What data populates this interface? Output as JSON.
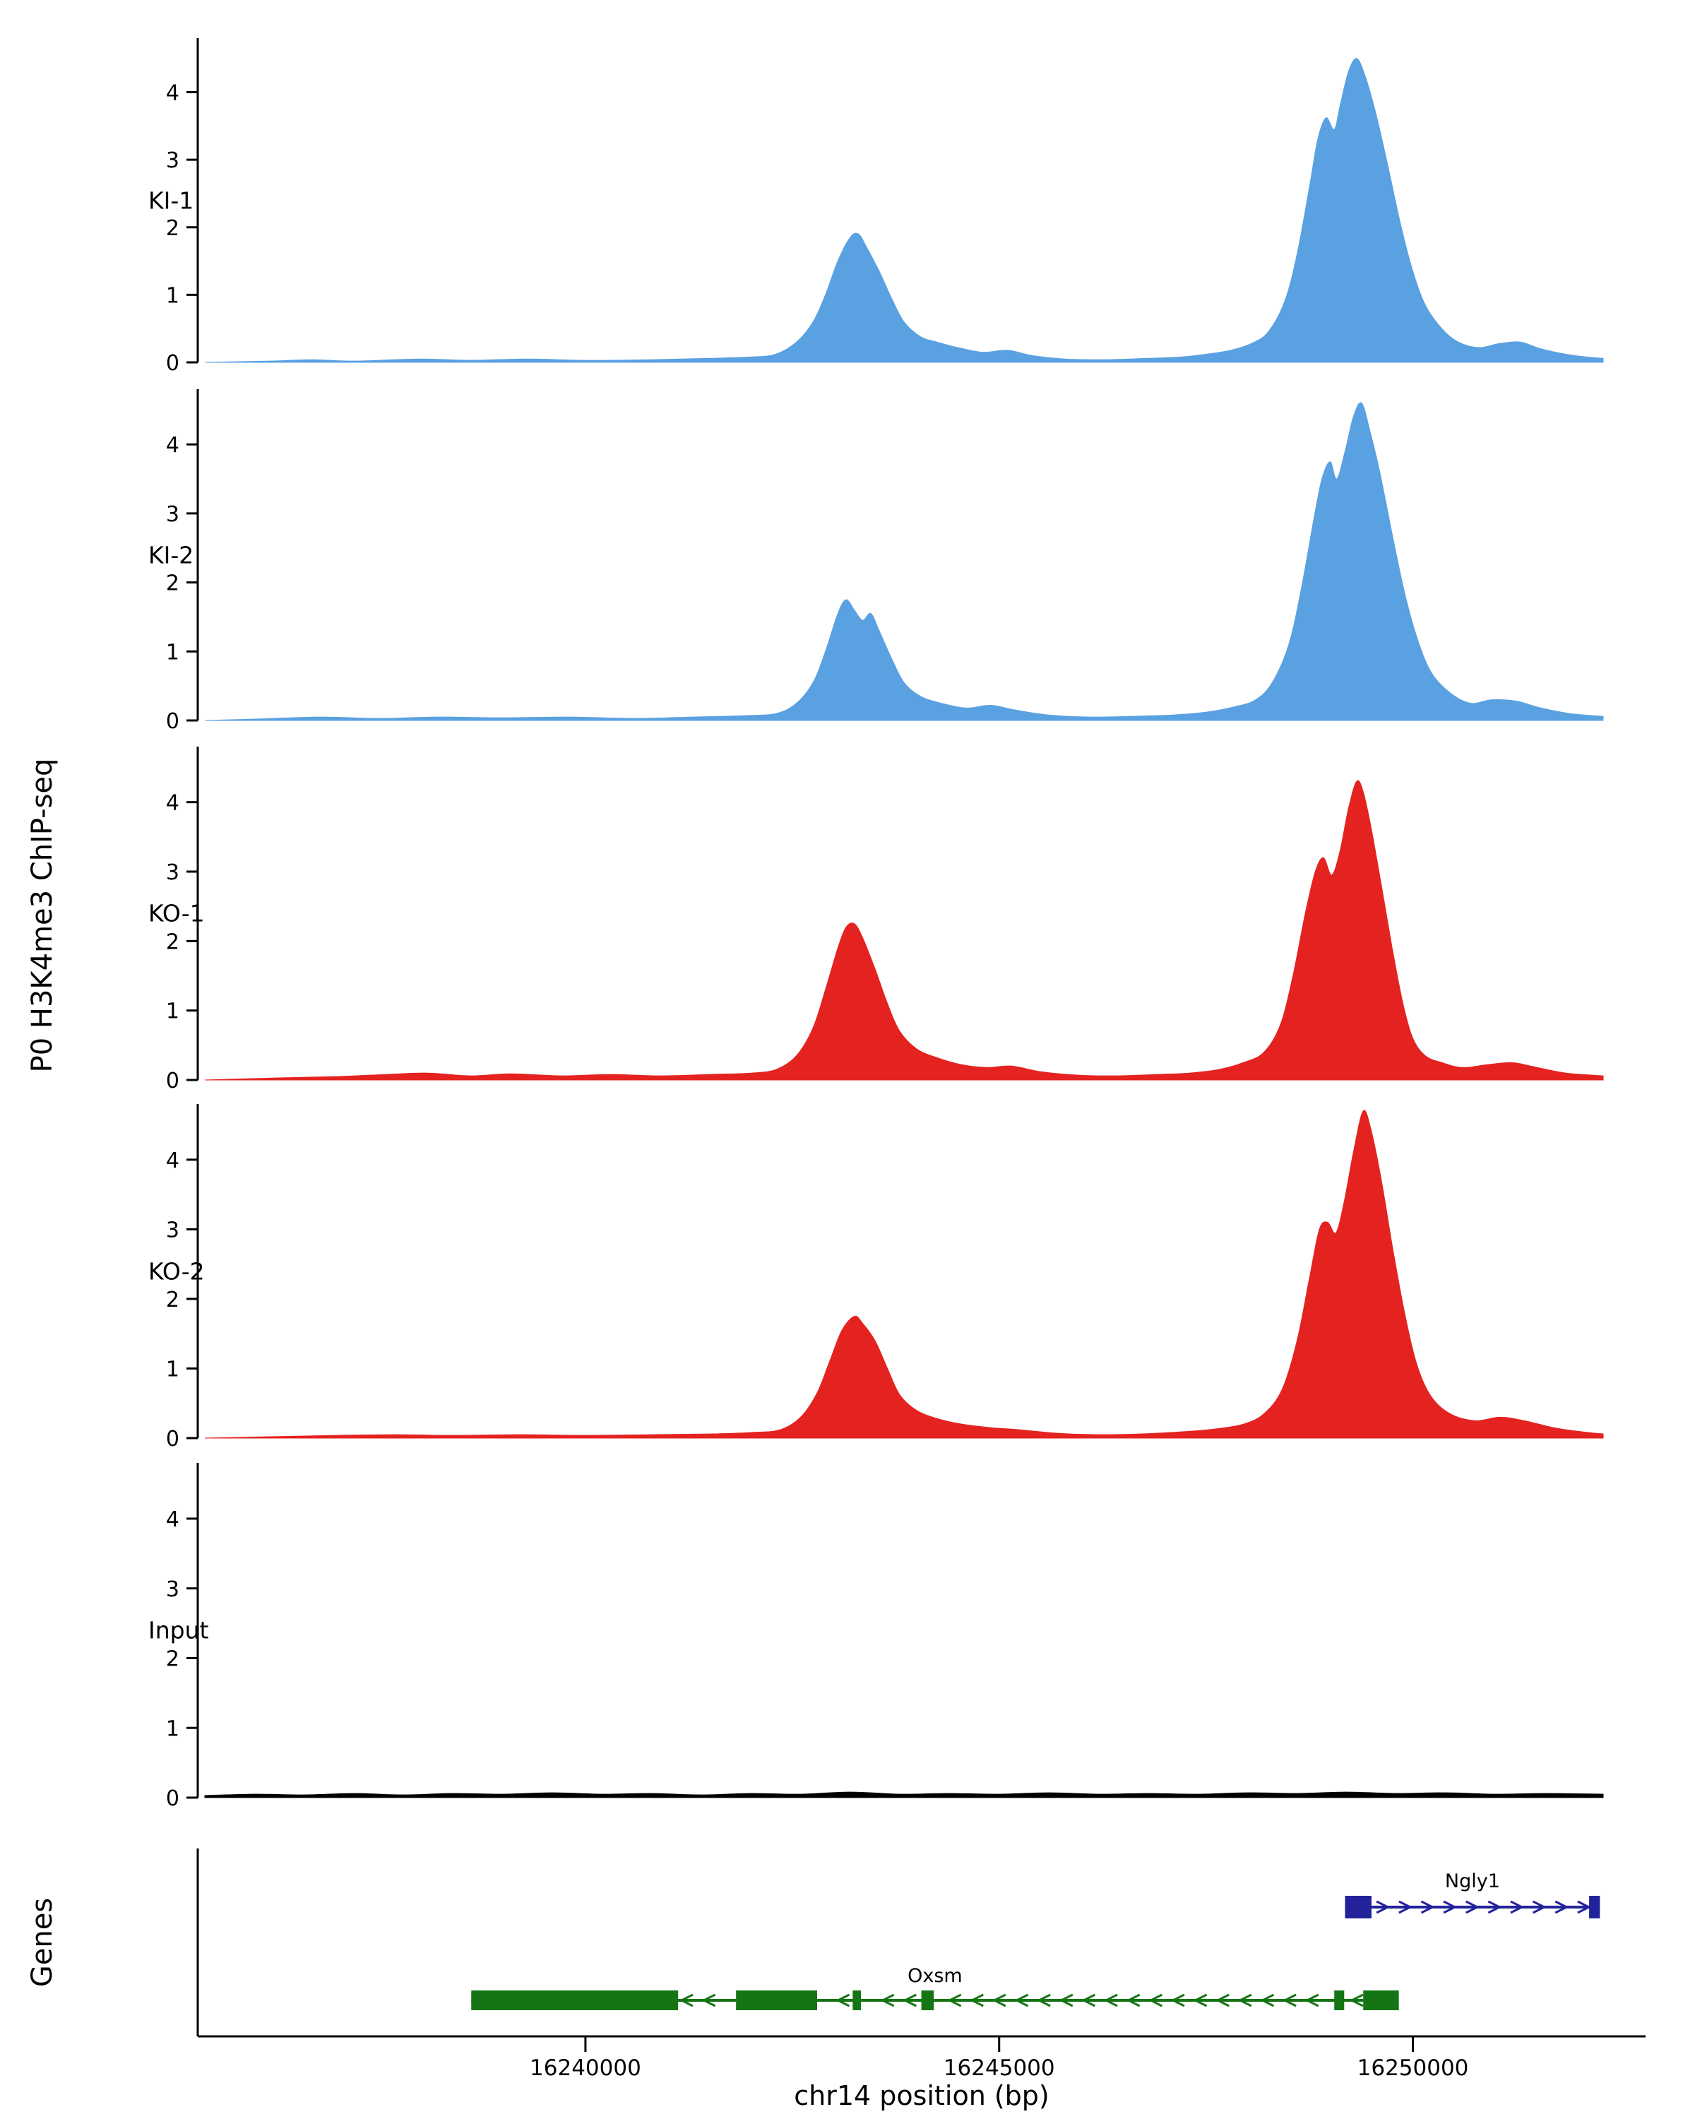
{
  "figure": {
    "ylabel": "P0 H3K4me3 ChIP-seq",
    "genes_label": "Genes",
    "xlabel": "chr14 position (bp)",
    "background": "#ffffff"
  },
  "chart_data": {
    "type": "area",
    "title": "",
    "xlabel": "chr14 position (bp)",
    "ylabel": "P0 H3K4me3 ChIP-seq",
    "x_range_bp": [
      16235400,
      16252300
    ],
    "x_ticks": [
      {
        "value": 16240000,
        "label": "16240000"
      },
      {
        "value": 16245000,
        "label": "16245000"
      },
      {
        "value": 16250000,
        "label": "16250000"
      }
    ],
    "y_ticks": [
      0,
      1,
      2,
      3,
      4
    ],
    "y_max": 4.8,
    "grid": false,
    "legend": "none",
    "tracks": [
      {
        "label": "KI-1",
        "color": "#5AA1E1",
        "points": [
          [
            16235400,
            0
          ],
          [
            16236200,
            0.02
          ],
          [
            16236700,
            0.04
          ],
          [
            16237200,
            0.02
          ],
          [
            16238000,
            0.05
          ],
          [
            16238600,
            0.03
          ],
          [
            16239300,
            0.05
          ],
          [
            16240000,
            0.03
          ],
          [
            16240800,
            0.04
          ],
          [
            16241500,
            0.06
          ],
          [
            16242000,
            0.08
          ],
          [
            16242300,
            0.12
          ],
          [
            16242550,
            0.3
          ],
          [
            16242750,
            0.6
          ],
          [
            16242900,
            1.0
          ],
          [
            16243050,
            1.5
          ],
          [
            16243200,
            1.85
          ],
          [
            16243300,
            1.9
          ],
          [
            16243400,
            1.7
          ],
          [
            16243550,
            1.35
          ],
          [
            16243700,
            0.95
          ],
          [
            16243850,
            0.6
          ],
          [
            16244050,
            0.38
          ],
          [
            16244250,
            0.3
          ],
          [
            16244500,
            0.22
          ],
          [
            16244800,
            0.15
          ],
          [
            16245100,
            0.18
          ],
          [
            16245400,
            0.1
          ],
          [
            16245800,
            0.05
          ],
          [
            16246300,
            0.04
          ],
          [
            16246800,
            0.06
          ],
          [
            16247200,
            0.08
          ],
          [
            16247500,
            0.12
          ],
          [
            16247800,
            0.18
          ],
          [
            16248050,
            0.28
          ],
          [
            16248250,
            0.45
          ],
          [
            16248450,
            0.9
          ],
          [
            16248600,
            1.6
          ],
          [
            16248750,
            2.6
          ],
          [
            16248850,
            3.3
          ],
          [
            16248950,
            3.62
          ],
          [
            16249050,
            3.45
          ],
          [
            16249120,
            3.8
          ],
          [
            16249220,
            4.3
          ],
          [
            16249320,
            4.5
          ],
          [
            16249420,
            4.25
          ],
          [
            16249550,
            3.7
          ],
          [
            16249700,
            2.9
          ],
          [
            16249850,
            2.05
          ],
          [
            16250000,
            1.35
          ],
          [
            16250150,
            0.85
          ],
          [
            16250350,
            0.5
          ],
          [
            16250550,
            0.3
          ],
          [
            16250800,
            0.22
          ],
          [
            16251050,
            0.28
          ],
          [
            16251300,
            0.3
          ],
          [
            16251550,
            0.2
          ],
          [
            16251850,
            0.12
          ],
          [
            16252100,
            0.08
          ],
          [
            16252300,
            0.06
          ]
        ]
      },
      {
        "label": "KI-2",
        "color": "#5AA1E1",
        "points": [
          [
            16235400,
            0
          ],
          [
            16236000,
            0.02
          ],
          [
            16236800,
            0.05
          ],
          [
            16237500,
            0.03
          ],
          [
            16238200,
            0.05
          ],
          [
            16239000,
            0.04
          ],
          [
            16239800,
            0.05
          ],
          [
            16240600,
            0.03
          ],
          [
            16241300,
            0.05
          ],
          [
            16241900,
            0.07
          ],
          [
            16242300,
            0.1
          ],
          [
            16242550,
            0.25
          ],
          [
            16242750,
            0.55
          ],
          [
            16242900,
            1.0
          ],
          [
            16243050,
            1.55
          ],
          [
            16243150,
            1.75
          ],
          [
            16243250,
            1.6
          ],
          [
            16243350,
            1.45
          ],
          [
            16243450,
            1.55
          ],
          [
            16243550,
            1.3
          ],
          [
            16243700,
            0.9
          ],
          [
            16243850,
            0.55
          ],
          [
            16244050,
            0.35
          ],
          [
            16244300,
            0.25
          ],
          [
            16244600,
            0.18
          ],
          [
            16244900,
            0.22
          ],
          [
            16245200,
            0.15
          ],
          [
            16245600,
            0.08
          ],
          [
            16246100,
            0.05
          ],
          [
            16246600,
            0.06
          ],
          [
            16247100,
            0.08
          ],
          [
            16247500,
            0.12
          ],
          [
            16247850,
            0.2
          ],
          [
            16248100,
            0.3
          ],
          [
            16248300,
            0.55
          ],
          [
            16248500,
            1.1
          ],
          [
            16248650,
            1.9
          ],
          [
            16248800,
            2.9
          ],
          [
            16248900,
            3.5
          ],
          [
            16249000,
            3.75
          ],
          [
            16249080,
            3.5
          ],
          [
            16249180,
            3.9
          ],
          [
            16249280,
            4.4
          ],
          [
            16249380,
            4.6
          ],
          [
            16249480,
            4.2
          ],
          [
            16249600,
            3.6
          ],
          [
            16249750,
            2.7
          ],
          [
            16249900,
            1.85
          ],
          [
            16250050,
            1.2
          ],
          [
            16250220,
            0.7
          ],
          [
            16250450,
            0.4
          ],
          [
            16250700,
            0.25
          ],
          [
            16250950,
            0.3
          ],
          [
            16251250,
            0.28
          ],
          [
            16251550,
            0.18
          ],
          [
            16251900,
            0.1
          ],
          [
            16252300,
            0.06
          ]
        ]
      },
      {
        "label": "KO-1",
        "color": "#E42320",
        "points": [
          [
            16235400,
            0
          ],
          [
            16236300,
            0.03
          ],
          [
            16237000,
            0.05
          ],
          [
            16237600,
            0.08
          ],
          [
            16238100,
            0.1
          ],
          [
            16238600,
            0.06
          ],
          [
            16239100,
            0.09
          ],
          [
            16239700,
            0.06
          ],
          [
            16240300,
            0.08
          ],
          [
            16240900,
            0.06
          ],
          [
            16241500,
            0.08
          ],
          [
            16242000,
            0.1
          ],
          [
            16242300,
            0.15
          ],
          [
            16242550,
            0.35
          ],
          [
            16242750,
            0.75
          ],
          [
            16242900,
            1.3
          ],
          [
            16243050,
            1.9
          ],
          [
            16243150,
            2.2
          ],
          [
            16243250,
            2.25
          ],
          [
            16243350,
            2.05
          ],
          [
            16243500,
            1.6
          ],
          [
            16243650,
            1.1
          ],
          [
            16243800,
            0.7
          ],
          [
            16244000,
            0.45
          ],
          [
            16244250,
            0.32
          ],
          [
            16244550,
            0.22
          ],
          [
            16244850,
            0.18
          ],
          [
            16245150,
            0.2
          ],
          [
            16245500,
            0.12
          ],
          [
            16245950,
            0.07
          ],
          [
            16246400,
            0.06
          ],
          [
            16246900,
            0.08
          ],
          [
            16247300,
            0.1
          ],
          [
            16247650,
            0.15
          ],
          [
            16247950,
            0.25
          ],
          [
            16248200,
            0.4
          ],
          [
            16248400,
            0.8
          ],
          [
            16248550,
            1.5
          ],
          [
            16248700,
            2.4
          ],
          [
            16248820,
            3.0
          ],
          [
            16248920,
            3.2
          ],
          [
            16249020,
            2.95
          ],
          [
            16249120,
            3.3
          ],
          [
            16249220,
            3.9
          ],
          [
            16249320,
            4.3
          ],
          [
            16249400,
            4.15
          ],
          [
            16249500,
            3.6
          ],
          [
            16249620,
            2.8
          ],
          [
            16249750,
            1.9
          ],
          [
            16249880,
            1.1
          ],
          [
            16250000,
            0.6
          ],
          [
            16250150,
            0.35
          ],
          [
            16250350,
            0.25
          ],
          [
            16250600,
            0.18
          ],
          [
            16250900,
            0.22
          ],
          [
            16251200,
            0.25
          ],
          [
            16251500,
            0.18
          ],
          [
            16251850,
            0.1
          ],
          [
            16252300,
            0.06
          ]
        ]
      },
      {
        "label": "KO-2",
        "color": "#E42320",
        "points": [
          [
            16235400,
            0
          ],
          [
            16236200,
            0.02
          ],
          [
            16237000,
            0.04
          ],
          [
            16237700,
            0.05
          ],
          [
            16238400,
            0.04
          ],
          [
            16239200,
            0.05
          ],
          [
            16240000,
            0.04
          ],
          [
            16240800,
            0.05
          ],
          [
            16241500,
            0.06
          ],
          [
            16242000,
            0.08
          ],
          [
            16242350,
            0.12
          ],
          [
            16242600,
            0.3
          ],
          [
            16242800,
            0.65
          ],
          [
            16242950,
            1.1
          ],
          [
            16243100,
            1.55
          ],
          [
            16243250,
            1.75
          ],
          [
            16243350,
            1.65
          ],
          [
            16243500,
            1.4
          ],
          [
            16243650,
            1.0
          ],
          [
            16243800,
            0.62
          ],
          [
            16244000,
            0.4
          ],
          [
            16244250,
            0.28
          ],
          [
            16244550,
            0.2
          ],
          [
            16244900,
            0.15
          ],
          [
            16245250,
            0.12
          ],
          [
            16245700,
            0.07
          ],
          [
            16246200,
            0.05
          ],
          [
            16246700,
            0.06
          ],
          [
            16247200,
            0.09
          ],
          [
            16247600,
            0.13
          ],
          [
            16247950,
            0.2
          ],
          [
            16248200,
            0.35
          ],
          [
            16248420,
            0.7
          ],
          [
            16248600,
            1.4
          ],
          [
            16248750,
            2.3
          ],
          [
            16248870,
            3.0
          ],
          [
            16248970,
            3.1
          ],
          [
            16249070,
            2.95
          ],
          [
            16249170,
            3.4
          ],
          [
            16249280,
            4.1
          ],
          [
            16249400,
            4.7
          ],
          [
            16249500,
            4.4
          ],
          [
            16249620,
            3.7
          ],
          [
            16249760,
            2.7
          ],
          [
            16249900,
            1.8
          ],
          [
            16250050,
            1.05
          ],
          [
            16250220,
            0.6
          ],
          [
            16250450,
            0.35
          ],
          [
            16250750,
            0.25
          ],
          [
            16251050,
            0.3
          ],
          [
            16251350,
            0.25
          ],
          [
            16251700,
            0.15
          ],
          [
            16252050,
            0.09
          ],
          [
            16252300,
            0.06
          ]
        ]
      },
      {
        "label": "Input",
        "color": "#000000",
        "points": [
          [
            16235400,
            0.03
          ],
          [
            16236000,
            0.05
          ],
          [
            16236600,
            0.04
          ],
          [
            16237200,
            0.06
          ],
          [
            16237800,
            0.04
          ],
          [
            16238400,
            0.06
          ],
          [
            16239000,
            0.05
          ],
          [
            16239600,
            0.07
          ],
          [
            16240200,
            0.05
          ],
          [
            16240800,
            0.06
          ],
          [
            16241400,
            0.04
          ],
          [
            16242000,
            0.06
          ],
          [
            16242600,
            0.05
          ],
          [
            16243200,
            0.08
          ],
          [
            16243800,
            0.05
          ],
          [
            16244400,
            0.06
          ],
          [
            16245000,
            0.05
          ],
          [
            16245600,
            0.07
          ],
          [
            16246200,
            0.05
          ],
          [
            16246800,
            0.06
          ],
          [
            16247400,
            0.05
          ],
          [
            16248000,
            0.07
          ],
          [
            16248600,
            0.06
          ],
          [
            16249200,
            0.08
          ],
          [
            16249800,
            0.06
          ],
          [
            16250400,
            0.07
          ],
          [
            16251000,
            0.05
          ],
          [
            16251600,
            0.06
          ],
          [
            16252300,
            0.05
          ]
        ]
      }
    ],
    "genes": [
      {
        "name": "Ngly1",
        "color": "#22229B",
        "strand": "+",
        "start": 16249180,
        "end": 16252260,
        "exons": [
          [
            16249180,
            16249500
          ],
          [
            16252130,
            16252260
          ]
        ]
      },
      {
        "name": "Oxsm",
        "color": "#157515",
        "strand": "-",
        "start": 16238620,
        "end": 16249830,
        "exons": [
          [
            16238620,
            16241120
          ],
          [
            16241820,
            16242800
          ],
          [
            16243230,
            16243330
          ],
          [
            16244060,
            16244210
          ],
          [
            16249050,
            16249170
          ],
          [
            16249400,
            16249830
          ]
        ]
      }
    ]
  }
}
